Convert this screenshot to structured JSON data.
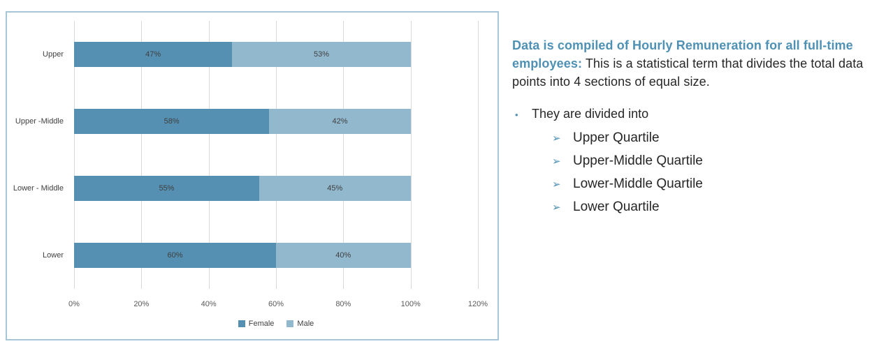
{
  "chart_data": {
    "type": "bar",
    "orientation": "horizontal",
    "stacked": true,
    "categories": [
      "Upper",
      "Upper -Middle",
      "Lower - Middle",
      "Lower"
    ],
    "series": [
      {
        "name": "Female",
        "values": [
          47,
          58,
          55,
          60
        ],
        "color": "#5590b2"
      },
      {
        "name": "Male",
        "values": [
          53,
          42,
          45,
          40
        ],
        "color": "#92b8ce"
      }
    ],
    "data_label_format": "{v}%",
    "x_ticks": [
      "0%",
      "20%",
      "40%",
      "60%",
      "80%",
      "100%",
      "120%"
    ],
    "xlim": [
      0,
      120
    ],
    "grid": "vertical",
    "gridline_color": "#d9d9d9",
    "axis_text_color": "#595959",
    "frame_border_color": "#a7c6d7",
    "legend_position": "bottom"
  },
  "info": {
    "lead_bold": "Data is compiled of Hourly Remuneration for all full-time employees:",
    "lead_rest": "This is a statistical term that divides the total data points into 4 sections of equal size.",
    "bullet_glyph": "•",
    "bullet_text": "They are divided into",
    "arrow_glyph": "➢",
    "items": [
      "Upper Quartile",
      "Upper-Middle Quartile",
      "Lower-Middle Quartile",
      "Lower Quartile"
    ],
    "heading_color": "#4f91b5",
    "body_color": "#262626"
  }
}
